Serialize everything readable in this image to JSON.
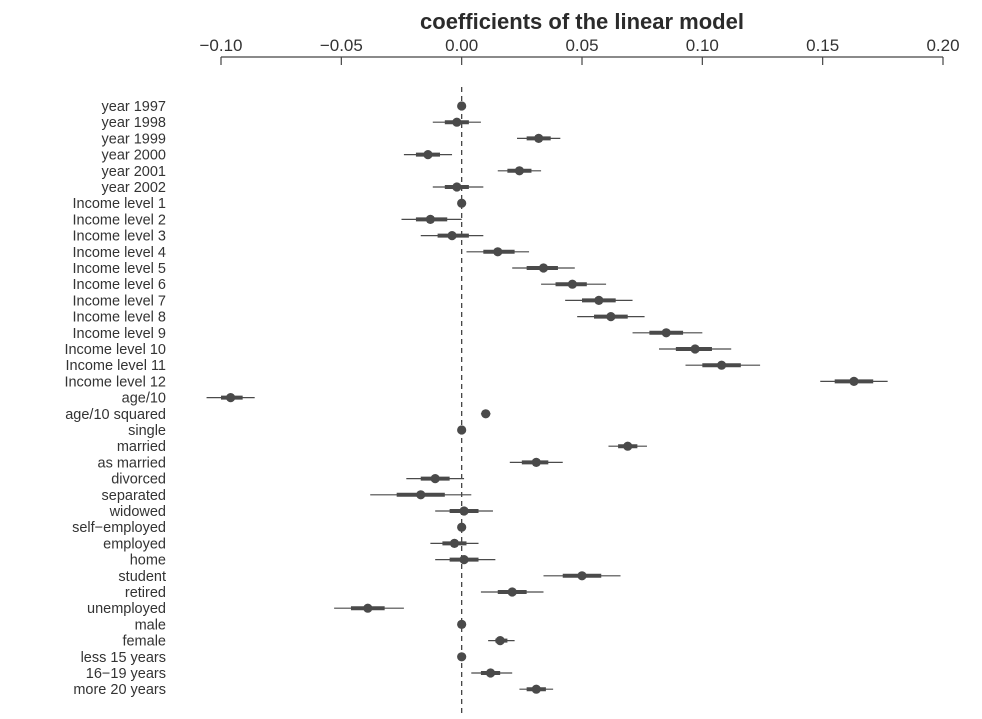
{
  "chart_data": {
    "type": "scatter",
    "title": "coefficients of the linear model",
    "xlabel": "",
    "ylabel": "",
    "xlim": [
      -0.1,
      0.2
    ],
    "x_ticks": [
      -0.1,
      -0.05,
      0.0,
      0.05,
      0.1,
      0.15,
      0.2
    ],
    "x_tick_labels": [
      "−0.10",
      "−0.05",
      "0.00",
      "0.05",
      "0.10",
      "0.15",
      "0.20"
    ],
    "reference_line": 0.0,
    "axis_position": "top",
    "grid": false,
    "rows": [
      {
        "label": "year 1997",
        "estimate": 0.0,
        "inner": [
          0.0,
          0.0
        ],
        "outer": [
          0.0,
          0.0
        ]
      },
      {
        "label": "year 1998",
        "estimate": -0.002,
        "inner": [
          -0.007,
          0.003
        ],
        "outer": [
          -0.012,
          0.008
        ]
      },
      {
        "label": "year 1999",
        "estimate": 0.032,
        "inner": [
          0.027,
          0.037
        ],
        "outer": [
          0.023,
          0.041
        ]
      },
      {
        "label": "year 2000",
        "estimate": -0.014,
        "inner": [
          -0.019,
          -0.009
        ],
        "outer": [
          -0.024,
          -0.004
        ]
      },
      {
        "label": "year 2001",
        "estimate": 0.024,
        "inner": [
          0.019,
          0.029
        ],
        "outer": [
          0.015,
          0.033
        ]
      },
      {
        "label": "year 2002",
        "estimate": -0.002,
        "inner": [
          -0.007,
          0.003
        ],
        "outer": [
          -0.012,
          0.009
        ]
      },
      {
        "label": "Income level 1",
        "estimate": 0.0,
        "inner": [
          0.0,
          0.0
        ],
        "outer": [
          0.0,
          0.0
        ]
      },
      {
        "label": "Income level 2",
        "estimate": -0.013,
        "inner": [
          -0.019,
          -0.006
        ],
        "outer": [
          -0.025,
          0.0
        ]
      },
      {
        "label": "Income level 3",
        "estimate": -0.004,
        "inner": [
          -0.01,
          0.003
        ],
        "outer": [
          -0.017,
          0.009
        ]
      },
      {
        "label": "Income level 4",
        "estimate": 0.015,
        "inner": [
          0.009,
          0.022
        ],
        "outer": [
          0.002,
          0.028
        ]
      },
      {
        "label": "Income level 5",
        "estimate": 0.034,
        "inner": [
          0.027,
          0.04
        ],
        "outer": [
          0.021,
          0.047
        ]
      },
      {
        "label": "Income level 6",
        "estimate": 0.046,
        "inner": [
          0.039,
          0.052
        ],
        "outer": [
          0.033,
          0.06
        ]
      },
      {
        "label": "Income level 7",
        "estimate": 0.057,
        "inner": [
          0.05,
          0.064
        ],
        "outer": [
          0.043,
          0.071
        ]
      },
      {
        "label": "Income level 8",
        "estimate": 0.062,
        "inner": [
          0.055,
          0.069
        ],
        "outer": [
          0.048,
          0.076
        ]
      },
      {
        "label": "Income level 9",
        "estimate": 0.085,
        "inner": [
          0.078,
          0.092
        ],
        "outer": [
          0.071,
          0.1
        ]
      },
      {
        "label": "Income level 10",
        "estimate": 0.097,
        "inner": [
          0.089,
          0.104
        ],
        "outer": [
          0.082,
          0.112
        ]
      },
      {
        "label": "Income level 11",
        "estimate": 0.108,
        "inner": [
          0.1,
          0.116
        ],
        "outer": [
          0.093,
          0.124
        ]
      },
      {
        "label": "Income level 12",
        "estimate": 0.163,
        "inner": [
          0.155,
          0.171
        ],
        "outer": [
          0.149,
          0.177
        ]
      },
      {
        "label": "age/10",
        "estimate": -0.096,
        "inner": [
          -0.1,
          -0.091
        ],
        "outer": [
          -0.106,
          -0.086
        ]
      },
      {
        "label": "age/10 squared",
        "estimate": 0.01,
        "inner": [
          0.009,
          0.011
        ],
        "outer": [
          0.008,
          0.012
        ]
      },
      {
        "label": "single",
        "estimate": 0.0,
        "inner": [
          0.0,
          0.0
        ],
        "outer": [
          0.0,
          0.0
        ]
      },
      {
        "label": "married",
        "estimate": 0.069,
        "inner": [
          0.065,
          0.073
        ],
        "outer": [
          0.061,
          0.077
        ]
      },
      {
        "label": "as married",
        "estimate": 0.031,
        "inner": [
          0.025,
          0.036
        ],
        "outer": [
          0.02,
          0.042
        ]
      },
      {
        "label": "divorced",
        "estimate": -0.011,
        "inner": [
          -0.017,
          -0.005
        ],
        "outer": [
          -0.023,
          0.001
        ]
      },
      {
        "label": "separated",
        "estimate": -0.017,
        "inner": [
          -0.027,
          -0.007
        ],
        "outer": [
          -0.038,
          0.004
        ]
      },
      {
        "label": "widowed",
        "estimate": 0.001,
        "inner": [
          -0.005,
          0.007
        ],
        "outer": [
          -0.011,
          0.013
        ]
      },
      {
        "label": "self−employed",
        "estimate": 0.0,
        "inner": [
          0.0,
          0.0
        ],
        "outer": [
          0.0,
          0.0
        ]
      },
      {
        "label": "employed",
        "estimate": -0.003,
        "inner": [
          -0.008,
          0.002
        ],
        "outer": [
          -0.013,
          0.007
        ]
      },
      {
        "label": "home",
        "estimate": 0.001,
        "inner": [
          -0.005,
          0.007
        ],
        "outer": [
          -0.011,
          0.014
        ]
      },
      {
        "label": "student",
        "estimate": 0.05,
        "inner": [
          0.042,
          0.058
        ],
        "outer": [
          0.034,
          0.066
        ]
      },
      {
        "label": "retired",
        "estimate": 0.021,
        "inner": [
          0.015,
          0.027
        ],
        "outer": [
          0.008,
          0.034
        ]
      },
      {
        "label": "unemployed",
        "estimate": -0.039,
        "inner": [
          -0.046,
          -0.032
        ],
        "outer": [
          -0.053,
          -0.024
        ]
      },
      {
        "label": "male",
        "estimate": 0.0,
        "inner": [
          0.0,
          0.0
        ],
        "outer": [
          0.0,
          0.0
        ]
      },
      {
        "label": "female",
        "estimate": 0.016,
        "inner": [
          0.014,
          0.019
        ],
        "outer": [
          0.011,
          0.022
        ]
      },
      {
        "label": "less 15 years",
        "estimate": 0.0,
        "inner": [
          0.0,
          0.0
        ],
        "outer": [
          0.0,
          0.0
        ]
      },
      {
        "label": "16−19 years",
        "estimate": 0.012,
        "inner": [
          0.008,
          0.016
        ],
        "outer": [
          0.004,
          0.021
        ]
      },
      {
        "label": "more 20 years",
        "estimate": 0.031,
        "inner": [
          0.027,
          0.035
        ],
        "outer": [
          0.024,
          0.038
        ]
      }
    ]
  }
}
